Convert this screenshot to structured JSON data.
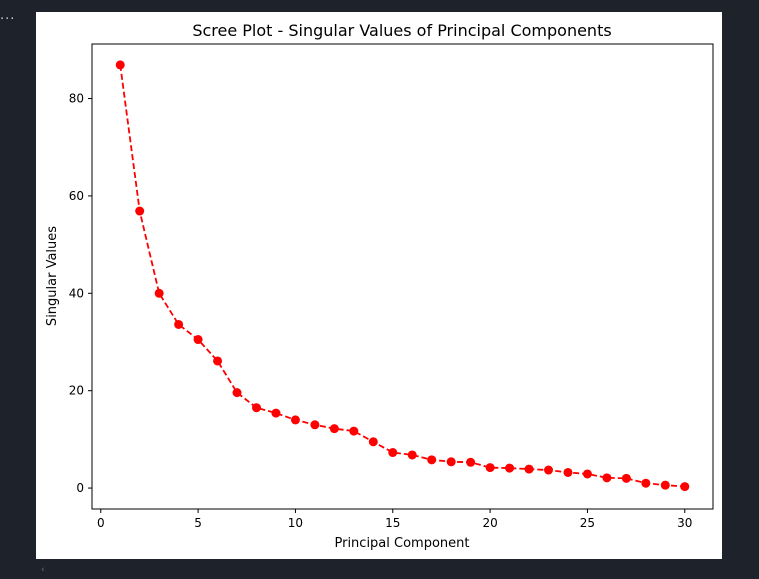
{
  "toolbar": {
    "more_glyph": "..."
  },
  "scroll": {
    "left_glyph": "‹"
  },
  "chart_data": {
    "type": "line",
    "title": "Scree Plot - Singular Values of Principal Components",
    "xlabel": "Principal Component",
    "ylabel": "Singular Values",
    "x": [
      1,
      2,
      3,
      4,
      5,
      6,
      7,
      8,
      9,
      10,
      11,
      12,
      13,
      14,
      15,
      16,
      17,
      18,
      19,
      20,
      21,
      22,
      23,
      24,
      25,
      26,
      27,
      28,
      29,
      30
    ],
    "series": [
      {
        "values": [
          86.9,
          56.9,
          40.0,
          33.6,
          30.5,
          26.1,
          19.6,
          16.5,
          15.4,
          14.0,
          13.0,
          12.2,
          11.7,
          9.5,
          7.3,
          6.8,
          5.8,
          5.4,
          5.3,
          4.2,
          4.1,
          3.9,
          3.7,
          3.2,
          2.9,
          2.1,
          2.0,
          1.0,
          0.6,
          0.3
        ],
        "color": "#ff0000",
        "line_style": "dashed",
        "marker": "circle"
      }
    ],
    "xticks": [
      0,
      5,
      10,
      15,
      20,
      25,
      30
    ],
    "yticks": [
      0,
      20,
      40,
      60,
      80
    ],
    "xlim": [
      -0.45,
      31.45
    ],
    "ylim": [
      -4.3,
      91.2
    ],
    "grid": false,
    "legend": "none"
  }
}
